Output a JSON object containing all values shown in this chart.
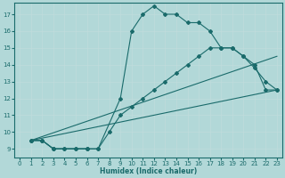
{
  "xlabel": "Humidex (Indice chaleur)",
  "ylabel": "",
  "background_color": "#b2d8d8",
  "grid_color": "#c0dcdc",
  "line_color": "#1a6b6b",
  "xlim": [
    -0.5,
    23.5
  ],
  "ylim": [
    8.5,
    17.7
  ],
  "xticks": [
    0,
    1,
    2,
    3,
    4,
    5,
    6,
    7,
    8,
    9,
    10,
    11,
    12,
    13,
    14,
    15,
    16,
    17,
    18,
    19,
    20,
    21,
    22,
    23
  ],
  "yticks": [
    9,
    10,
    11,
    12,
    13,
    14,
    15,
    16,
    17
  ],
  "line_curve1": {
    "x": [
      1,
      2,
      3,
      4,
      5,
      6
    ],
    "y": [
      9.5,
      9.5,
      9.0,
      9.0,
      9.0,
      9.0
    ]
  },
  "line_curve2": {
    "x": [
      1,
      2,
      3,
      4,
      5,
      6,
      7,
      8,
      9,
      10,
      11,
      12,
      13,
      14,
      15,
      16,
      17,
      18,
      19,
      20,
      21,
      22,
      23
    ],
    "y": [
      9.5,
      9.5,
      9.0,
      9.0,
      9.0,
      9.0,
      9.0,
      10.0,
      11.0,
      11.5,
      12.0,
      12.5,
      13.0,
      13.5,
      14.0,
      14.5,
      15.0,
      15.0,
      15.0,
      14.5,
      14.0,
      12.5,
      12.5
    ]
  },
  "line_curve3": {
    "x": [
      1,
      2,
      3,
      6,
      7,
      9,
      10,
      11,
      12,
      13,
      14,
      15,
      16,
      17,
      18,
      19,
      20,
      21,
      22,
      23
    ],
    "y": [
      9.5,
      9.5,
      9.0,
      9.0,
      9.0,
      12.0,
      16.0,
      17.0,
      17.5,
      17.0,
      17.0,
      16.5,
      16.5,
      16.0,
      15.0,
      15.0,
      14.5,
      13.8,
      13.0,
      12.5
    ]
  },
  "line_diag1": {
    "comment": "straight line from ~(1,9.5) to ~(23,14.5)",
    "x": [
      1,
      23
    ],
    "y": [
      9.5,
      14.5
    ]
  },
  "line_diag2": {
    "comment": "straight line from ~(1,9.5) to ~(23,12.5)",
    "x": [
      1,
      23
    ],
    "y": [
      9.5,
      12.5
    ]
  }
}
